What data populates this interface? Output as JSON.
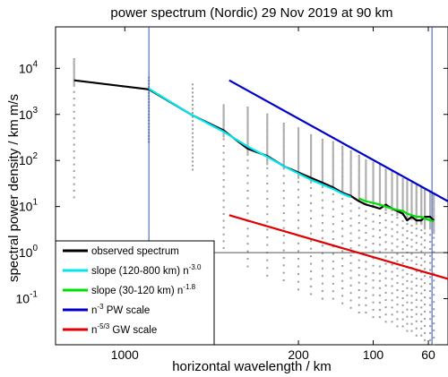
{
  "chart_data": {
    "type": "line",
    "title": "power spectrum (Nordic) 29 Nov 2019 at 90 km",
    "xlabel": "horizontal wavelength / km",
    "ylabel": "spectral power density / km m/s",
    "x_scale": "log-reversed",
    "y_scale": "log",
    "xlim_km": [
      1900,
      50
    ],
    "ylim_exp": [
      -2,
      4.9
    ],
    "x_ticks": [
      {
        "value": 1000,
        "label": "1000"
      },
      {
        "value": 200,
        "label": "200"
      },
      {
        "value": 100,
        "label": "100"
      },
      {
        "value": 60,
        "label": "60"
      }
    ],
    "y_ticks": [
      {
        "exp": 4,
        "mant": "10",
        "sup": "4"
      },
      {
        "exp": 3,
        "mant": "10",
        "sup": "3"
      },
      {
        "exp": 2,
        "mant": "10",
        "sup": "2"
      },
      {
        "exp": 1,
        "mant": "10",
        "sup": "1"
      },
      {
        "exp": 0,
        "mant": "10",
        "sup": "0"
      },
      {
        "exp": -1,
        "mant": "10",
        "sup": "-1"
      }
    ],
    "reference_lines": {
      "vertical_km": [
        800,
        58
      ],
      "horizontal_y": 1
    },
    "scatter_columns": [
      {
        "x": 1600,
        "ymin_exp": 1.2,
        "ymax_exp": 4.2
      },
      {
        "x": 800,
        "ymin_exp": 2.4,
        "ymax_exp": 3.8
      },
      {
        "x": 533,
        "ymin_exp": 1.8,
        "ymax_exp": 3.65
      },
      {
        "x": 400,
        "ymin_exp": 0.1,
        "ymax_exp": 3.2
      },
      {
        "x": 320,
        "ymin_exp": -0.3,
        "ymax_exp": 3.15
      },
      {
        "x": 267,
        "ymin_exp": -0.5,
        "ymax_exp": 3.0
      },
      {
        "x": 229,
        "ymin_exp": -0.6,
        "ymax_exp": 2.8
      },
      {
        "x": 200,
        "ymin_exp": -0.8,
        "ymax_exp": 2.7
      },
      {
        "x": 178,
        "ymin_exp": -0.9,
        "ymax_exp": 2.55
      },
      {
        "x": 160,
        "ymin_exp": -1.0,
        "ymax_exp": 2.45
      },
      {
        "x": 145,
        "ymin_exp": -1.0,
        "ymax_exp": 2.4
      },
      {
        "x": 133,
        "ymin_exp": -1.1,
        "ymax_exp": 2.3
      },
      {
        "x": 123,
        "ymin_exp": -1.2,
        "ymax_exp": 2.2
      },
      {
        "x": 114,
        "ymin_exp": -1.3,
        "ymax_exp": 2.1
      },
      {
        "x": 107,
        "ymin_exp": -1.3,
        "ymax_exp": 2.0
      },
      {
        "x": 100,
        "ymin_exp": -1.4,
        "ymax_exp": 1.95
      },
      {
        "x": 94,
        "ymin_exp": -1.4,
        "ymax_exp": 1.9
      },
      {
        "x": 89,
        "ymin_exp": -1.5,
        "ymax_exp": 1.8
      },
      {
        "x": 84,
        "ymin_exp": -1.5,
        "ymax_exp": 1.75
      },
      {
        "x": 80,
        "ymin_exp": -1.6,
        "ymax_exp": 1.7
      },
      {
        "x": 76,
        "ymin_exp": -1.6,
        "ymax_exp": 1.6
      },
      {
        "x": 73,
        "ymin_exp": -1.7,
        "ymax_exp": 1.55
      },
      {
        "x": 70,
        "ymin_exp": -1.7,
        "ymax_exp": 1.5
      },
      {
        "x": 67,
        "ymin_exp": -1.8,
        "ymax_exp": 1.45
      },
      {
        "x": 64,
        "ymin_exp": -1.8,
        "ymax_exp": 1.4
      },
      {
        "x": 62,
        "ymin_exp": -1.9,
        "ymax_exp": 1.35
      },
      {
        "x": 59,
        "ymin_exp": -1.9,
        "ymax_exp": 1.3
      },
      {
        "x": 57,
        "ymin_exp": -2.0,
        "ymax_exp": 1.25
      }
    ],
    "series": [
      {
        "name": "observed spectrum",
        "color": "#000000",
        "x": [
          1600,
          800,
          533,
          400,
          320,
          267,
          229,
          200,
          178,
          160,
          145,
          133,
          123,
          114,
          107,
          100,
          94,
          89,
          84,
          80,
          76,
          73,
          70,
          67,
          64,
          62,
          59,
          57
        ],
        "y": [
          5500,
          3500,
          950,
          450,
          180,
          125,
          75,
          55,
          42,
          33,
          26,
          20,
          17,
          13,
          11,
          10,
          9,
          11,
          9,
          8,
          7,
          5,
          6,
          5,
          5,
          6,
          6,
          5
        ]
      },
      {
        "name": "slope (120-800 km)",
        "sup": "-3.0",
        "color": "#00e5ee",
        "x": [
          800,
          533,
          400,
          320,
          267,
          229,
          200,
          178,
          160,
          145,
          133,
          123
        ],
        "y": [
          3600,
          950,
          420,
          200,
          120,
          75,
          52,
          38,
          30,
          24,
          19,
          16
        ]
      },
      {
        "name": "slope (30-120 km)",
        "sup": "-1.8",
        "color": "#00e000",
        "x": [
          114,
          107,
          100,
          94,
          89,
          84,
          80,
          76,
          73,
          70,
          67,
          64,
          62,
          59,
          57
        ],
        "y": [
          15,
          13,
          12,
          11,
          10,
          9,
          8.5,
          8,
          7,
          6.5,
          6,
          6,
          5.5,
          5,
          4.8
        ]
      },
      {
        "name": "PW scale",
        "prefix": "n",
        "sup": "-3",
        "color": "#0000cc",
        "x": [
          380,
          50
        ],
        "y": [
          5500,
          13
        ]
      },
      {
        "name": "GW scale",
        "prefix": "n",
        "sup": "-5/3",
        "color": "#e00000",
        "x": [
          380,
          50
        ],
        "y": [
          6.5,
          0.27
        ]
      }
    ],
    "legend": {
      "placement": "bottom-left",
      "entries": [
        {
          "text": "observed spectrum",
          "sup": "",
          "color": "#000000"
        },
        {
          "text": "slope (120-800 km) n",
          "sup": "-3.0",
          "color": "#00e5ee"
        },
        {
          "text": "slope (30-120 km) n",
          "sup": "-1.8",
          "color": "#00e000"
        },
        {
          "text": "n",
          "sup": "-3",
          "after": " PW scale",
          "color": "#0000cc"
        },
        {
          "text": "n",
          "sup": "-5/3",
          "after": " GW scale",
          "color": "#e00000"
        }
      ]
    },
    "grid": false
  }
}
